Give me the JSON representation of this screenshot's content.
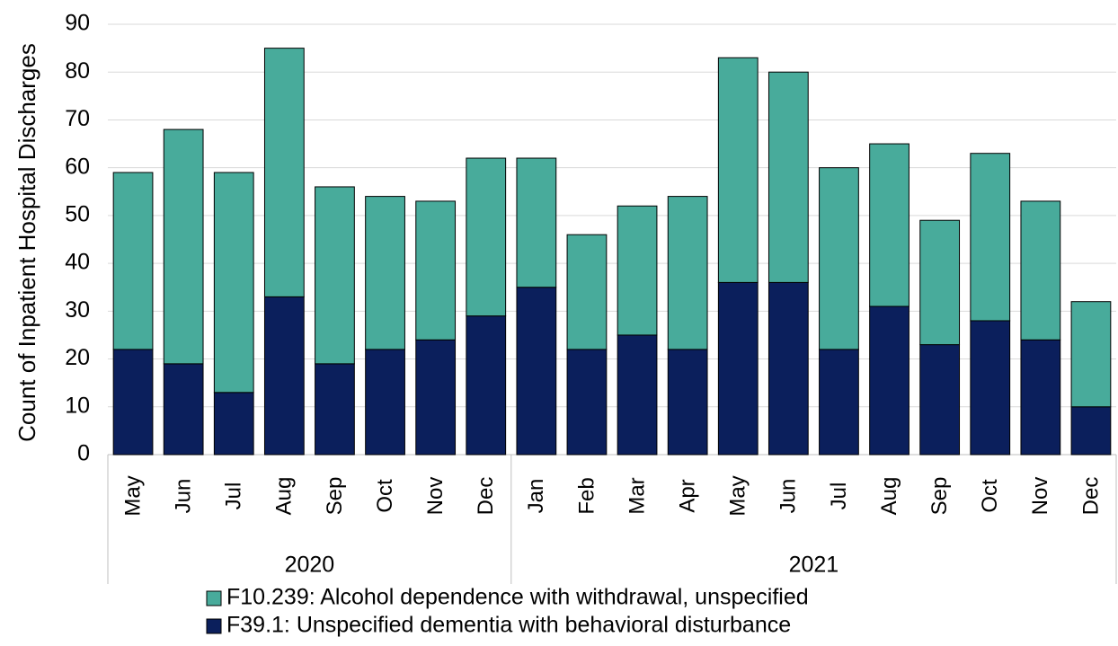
{
  "chart_data": {
    "type": "stacked_bar",
    "y_label": "Count of Inpatient Hospital Discharges",
    "groups": [
      {
        "label": "2020",
        "months": [
          "May",
          "Jun",
          "Jul",
          "Aug",
          "Sep",
          "Oct",
          "Nov",
          "Dec"
        ]
      },
      {
        "label": "2021",
        "months": [
          "Jan",
          "Feb",
          "Mar",
          "Apr",
          "May",
          "Jun",
          "Jul",
          "Aug",
          "Sep",
          "Oct",
          "Nov",
          "Dec"
        ]
      }
    ],
    "series": [
      {
        "name": "F39.1: Unspecified dementia with behavioral disturbance",
        "color": "#0b1f5c",
        "values": [
          22,
          19,
          13,
          33,
          19,
          22,
          24,
          29,
          35,
          22,
          25,
          22,
          36,
          36,
          22,
          31,
          23,
          28,
          24,
          10
        ]
      },
      {
        "name": "F10.239: Alcohol dependence with withdrawal, unspecified",
        "color": "#48ab9b",
        "values": [
          37,
          49,
          46,
          52,
          37,
          32,
          29,
          33,
          27,
          24,
          27,
          32,
          47,
          44,
          38,
          34,
          26,
          35,
          29,
          22
        ]
      }
    ],
    "ylim": [
      0,
      90
    ],
    "yticks": [
      0,
      10,
      20,
      30,
      40,
      50,
      60,
      70,
      80,
      90
    ],
    "grid": true
  }
}
